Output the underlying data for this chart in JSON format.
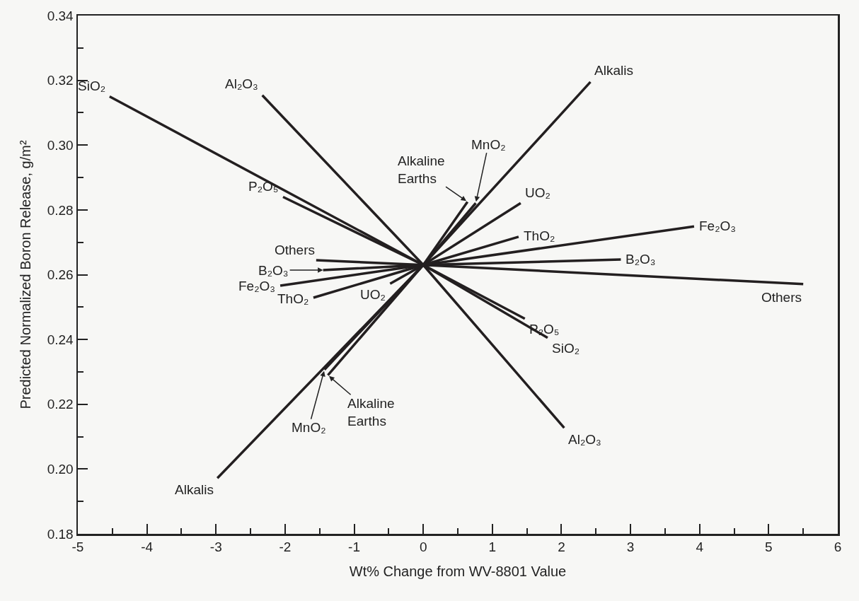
{
  "chart_data": {
    "type": "line",
    "xlabel": "Wt% Change from WV-8801 Value",
    "ylabel": "Predicted Normalized Boron Release, g/m²",
    "xlim": [
      -5,
      6
    ],
    "ylim": [
      0.18,
      0.34
    ],
    "xticks": [
      -5,
      {
        "value": -4.5,
        "label": null
      },
      -4,
      {
        "value": -3.5,
        "label": null
      },
      -3,
      {
        "value": -2.5,
        "label": null
      },
      -2,
      {
        "value": -1.5,
        "label": null
      },
      -1,
      {
        "value": -0.5,
        "label": null
      },
      0,
      {
        "value": 0.5,
        "label": null
      },
      1,
      {
        "value": 1.5,
        "label": null
      },
      2,
      {
        "value": 2.5,
        "label": null
      },
      3,
      {
        "value": 3.5,
        "label": null
      },
      4,
      {
        "value": 4.5,
        "label": null
      },
      5,
      {
        "value": 5.5,
        "label": null
      },
      6
    ],
    "yticks": [
      0.18,
      {
        "value": 0.19,
        "label": null
      },
      {
        "value": 0.2,
        "label": "0.20"
      },
      {
        "value": 0.21,
        "label": null
      },
      0.22,
      {
        "value": 0.23,
        "label": null
      },
      0.24,
      {
        "value": 0.25,
        "label": null
      },
      0.26,
      {
        "value": 0.27,
        "label": null
      },
      0.28,
      {
        "value": 0.29,
        "label": null
      },
      {
        "value": 0.3,
        "label": "0.30"
      },
      {
        "value": 0.31,
        "label": null
      },
      0.32,
      {
        "value": 0.33,
        "label": null
      },
      0.34
    ],
    "grid": false,
    "marker": "none",
    "line_style": "solid",
    "series": [
      {
        "color": "#231f20",
        "x": [
          -4.54,
          0,
          1.8
        ],
        "values": [
          0.315,
          0.263,
          0.2405
        ]
      },
      {
        "color": "#231f20",
        "x": [
          -2.33,
          0,
          2.04
        ],
        "values": [
          0.3154,
          0.263,
          0.2127
        ]
      },
      {
        "color": "#231f20",
        "x": [
          -2.98,
          0,
          2.42
        ],
        "values": [
          0.1972,
          0.263,
          0.3195
        ]
      },
      {
        "color": "#231f20",
        "x": [
          -2.03,
          0,
          1.47
        ],
        "values": [
          0.284,
          0.263,
          0.2464
        ]
      },
      {
        "color": "#231f20",
        "x": [
          -1.55,
          0,
          5.5
        ],
        "values": [
          0.2645,
          0.263,
          0.2571
        ]
      },
      {
        "color": "#231f20",
        "x": [
          -1.45,
          0,
          2.86
        ],
        "values": [
          0.2614,
          0.263,
          0.2647
        ]
      },
      {
        "color": "#231f20",
        "x": [
          -2.07,
          0,
          3.92
        ],
        "values": [
          0.2566,
          0.263,
          0.2749
        ]
      },
      {
        "color": "#231f20",
        "x": [
          -1.59,
          0,
          1.38
        ],
        "values": [
          0.2529,
          0.263,
          0.2717
        ]
      },
      {
        "color": "#231f20",
        "x": [
          -0.48,
          0,
          1.41
        ],
        "values": [
          0.2572,
          0.263,
          0.2821
        ]
      },
      {
        "color": "#231f20",
        "x": [
          -1.43,
          0,
          0.76
        ],
        "values": [
          0.2307,
          0.263,
          0.2821
        ]
      },
      {
        "color": "#231f20",
        "x": [
          -1.38,
          0,
          0.64
        ],
        "values": [
          0.229,
          0.263,
          0.2825
        ]
      }
    ],
    "annotations": [
      {
        "text": "SiO₂",
        "x": -4.54,
        "y": 0.315
      },
      {
        "text": "SiO₂",
        "x": 1.8,
        "y": 0.2405
      },
      {
        "text": "Al₂O₃",
        "x": -2.33,
        "y": 0.3154
      },
      {
        "text": "Al₂O₃",
        "x": 2.04,
        "y": 0.2127
      },
      {
        "text": "Alkalis",
        "x": -2.98,
        "y": 0.1972
      },
      {
        "text": "Alkalis",
        "x": 2.42,
        "y": 0.3195
      },
      {
        "text": "P₂O₅",
        "x": -2.03,
        "y": 0.284
      },
      {
        "text": "P₂O₅",
        "x": 1.47,
        "y": 0.2464
      },
      {
        "text": "Others",
        "x": -1.55,
        "y": 0.2645
      },
      {
        "text": "Others",
        "x": 5.5,
        "y": 0.2571
      },
      {
        "text": "B₂O₃",
        "x": -1.45,
        "y": 0.2614
      },
      {
        "text": "B₂O₃",
        "x": 2.86,
        "y": 0.2647
      },
      {
        "text": "Fe₂O₃",
        "x": -2.07,
        "y": 0.2566
      },
      {
        "text": "Fe₂O₃",
        "x": 3.92,
        "y": 0.2749
      },
      {
        "text": "ThO₂",
        "x": -1.59,
        "y": 0.2529
      },
      {
        "text": "ThO₂",
        "x": 1.38,
        "y": 0.2717
      },
      {
        "text": "UO₂",
        "x": -0.48,
        "y": 0.2572
      },
      {
        "text": "UO₂",
        "x": 1.41,
        "y": 0.2821
      },
      {
        "text": "MnO₂",
        "x": -1.43,
        "y": 0.2307
      },
      {
        "text": "MnO₂",
        "x": 0.76,
        "y": 0.2821
      },
      {
        "text": "Alkaline\nEarths",
        "x": -1.38,
        "y": 0.229
      },
      {
        "text": "Alkaline\nEarths",
        "x": 0.64,
        "y": 0.2825
      }
    ]
  }
}
